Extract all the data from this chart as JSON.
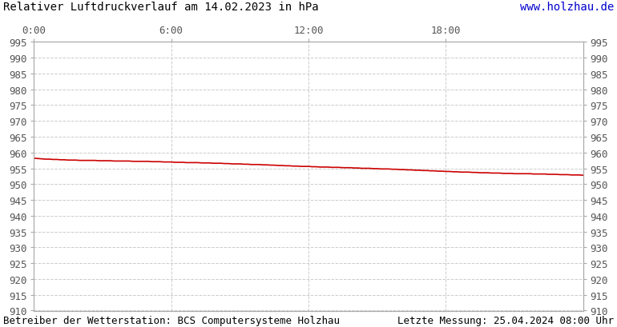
{
  "title": "Relativer Luftdruckverlauf am 14.02.2023 in hPa",
  "url_text": "www.holzhau.de",
  "url_color": "#0000cc",
  "footer_left": "Betreiber der Wetterstation: BCS Computersysteme Holzhau",
  "footer_right": "Letzte Messung: 25.04.2024 08:00 Uhr",
  "x_ticks_labels": [
    "0:00",
    "6:00",
    "12:00",
    "18:00"
  ],
  "x_ticks_positions": [
    0,
    360,
    720,
    1080
  ],
  "x_max": 1440,
  "y_min": 910,
  "y_max": 995,
  "y_step": 5,
  "line_color": "#cc0000",
  "line_width": 1.2,
  "background_color": "#ffffff",
  "grid_color": "#cccccc",
  "pressure_data": [
    [
      0,
      958.2
    ],
    [
      10,
      958.1
    ],
    [
      20,
      958.0
    ],
    [
      30,
      957.9
    ],
    [
      40,
      957.9
    ],
    [
      50,
      957.8
    ],
    [
      60,
      957.8
    ],
    [
      70,
      957.7
    ],
    [
      80,
      957.7
    ],
    [
      90,
      957.6
    ],
    [
      100,
      957.6
    ],
    [
      110,
      957.6
    ],
    [
      120,
      957.5
    ],
    [
      130,
      957.5
    ],
    [
      140,
      957.5
    ],
    [
      150,
      957.5
    ],
    [
      160,
      957.5
    ],
    [
      170,
      957.4
    ],
    [
      180,
      957.4
    ],
    [
      190,
      957.4
    ],
    [
      200,
      957.4
    ],
    [
      210,
      957.3
    ],
    [
      220,
      957.3
    ],
    [
      230,
      957.3
    ],
    [
      240,
      957.3
    ],
    [
      250,
      957.3
    ],
    [
      260,
      957.2
    ],
    [
      270,
      957.2
    ],
    [
      280,
      957.2
    ],
    [
      290,
      957.2
    ],
    [
      300,
      957.2
    ],
    [
      310,
      957.1
    ],
    [
      320,
      957.1
    ],
    [
      330,
      957.1
    ],
    [
      340,
      957.0
    ],
    [
      350,
      957.0
    ],
    [
      360,
      957.0
    ],
    [
      370,
      956.9
    ],
    [
      380,
      956.9
    ],
    [
      390,
      956.9
    ],
    [
      400,
      956.8
    ],
    [
      410,
      956.8
    ],
    [
      420,
      956.8
    ],
    [
      430,
      956.8
    ],
    [
      440,
      956.7
    ],
    [
      450,
      956.7
    ],
    [
      460,
      956.7
    ],
    [
      470,
      956.6
    ],
    [
      480,
      956.6
    ],
    [
      490,
      956.6
    ],
    [
      500,
      956.5
    ],
    [
      510,
      956.5
    ],
    [
      520,
      956.4
    ],
    [
      530,
      956.4
    ],
    [
      540,
      956.4
    ],
    [
      550,
      956.3
    ],
    [
      560,
      956.3
    ],
    [
      570,
      956.2
    ],
    [
      580,
      956.2
    ],
    [
      590,
      956.2
    ],
    [
      600,
      956.1
    ],
    [
      610,
      956.1
    ],
    [
      620,
      956.0
    ],
    [
      630,
      956.0
    ],
    [
      640,
      955.9
    ],
    [
      650,
      955.9
    ],
    [
      660,
      955.8
    ],
    [
      670,
      955.8
    ],
    [
      680,
      955.7
    ],
    [
      690,
      955.7
    ],
    [
      700,
      955.6
    ],
    [
      710,
      955.6
    ],
    [
      720,
      955.6
    ],
    [
      730,
      955.5
    ],
    [
      740,
      955.5
    ],
    [
      750,
      955.4
    ],
    [
      760,
      955.4
    ],
    [
      770,
      955.4
    ],
    [
      780,
      955.3
    ],
    [
      790,
      955.3
    ],
    [
      800,
      955.3
    ],
    [
      810,
      955.2
    ],
    [
      820,
      955.2
    ],
    [
      830,
      955.2
    ],
    [
      840,
      955.1
    ],
    [
      850,
      955.1
    ],
    [
      860,
      955.0
    ],
    [
      870,
      955.0
    ],
    [
      880,
      955.0
    ],
    [
      890,
      954.9
    ],
    [
      900,
      954.9
    ],
    [
      910,
      954.8
    ],
    [
      920,
      954.8
    ],
    [
      930,
      954.8
    ],
    [
      940,
      954.7
    ],
    [
      950,
      954.7
    ],
    [
      960,
      954.6
    ],
    [
      970,
      954.6
    ],
    [
      980,
      954.5
    ],
    [
      990,
      954.5
    ],
    [
      1000,
      954.4
    ],
    [
      1010,
      954.4
    ],
    [
      1020,
      954.3
    ],
    [
      1030,
      954.3
    ],
    [
      1040,
      954.2
    ],
    [
      1050,
      954.2
    ],
    [
      1060,
      954.1
    ],
    [
      1070,
      954.1
    ],
    [
      1080,
      954.0
    ],
    [
      1090,
      954.0
    ],
    [
      1100,
      953.9
    ],
    [
      1110,
      953.9
    ],
    [
      1120,
      953.8
    ],
    [
      1130,
      953.8
    ],
    [
      1140,
      953.8
    ],
    [
      1150,
      953.7
    ],
    [
      1160,
      953.7
    ],
    [
      1170,
      953.6
    ],
    [
      1180,
      953.6
    ],
    [
      1190,
      953.6
    ],
    [
      1200,
      953.5
    ],
    [
      1210,
      953.5
    ],
    [
      1220,
      953.5
    ],
    [
      1230,
      953.4
    ],
    [
      1240,
      953.4
    ],
    [
      1250,
      953.4
    ],
    [
      1260,
      953.3
    ],
    [
      1270,
      953.3
    ],
    [
      1280,
      953.3
    ],
    [
      1290,
      953.3
    ],
    [
      1300,
      953.3
    ],
    [
      1310,
      953.2
    ],
    [
      1320,
      953.2
    ],
    [
      1330,
      953.2
    ],
    [
      1340,
      953.2
    ],
    [
      1350,
      953.1
    ],
    [
      1360,
      953.1
    ],
    [
      1370,
      953.1
    ],
    [
      1380,
      953.0
    ],
    [
      1390,
      953.0
    ],
    [
      1400,
      953.0
    ],
    [
      1410,
      952.9
    ],
    [
      1420,
      952.9
    ],
    [
      1430,
      952.9
    ],
    [
      1440,
      952.8
    ]
  ],
  "title_fontsize": 10,
  "tick_fontsize": 9,
  "footer_fontsize": 9
}
